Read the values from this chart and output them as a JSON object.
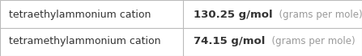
{
  "rows": [
    {
      "label": "tetraethylammonium cation",
      "value_bold": "130.25 g/mol",
      "value_light": "  (grams per mole)"
    },
    {
      "label": "tetramethylammonium cation",
      "value_bold": "74.15 g/mol",
      "value_light": "  (grams per mole)"
    }
  ],
  "background_color": "#ffffff",
  "border_color": "#bbbbbb",
  "text_color": "#333333",
  "light_text_color": "#999999",
  "label_fontsize": 9.0,
  "value_bold_fontsize": 9.5,
  "value_light_fontsize": 8.5,
  "col_split": 0.505,
  "fig_width": 4.47,
  "fig_height": 0.7
}
